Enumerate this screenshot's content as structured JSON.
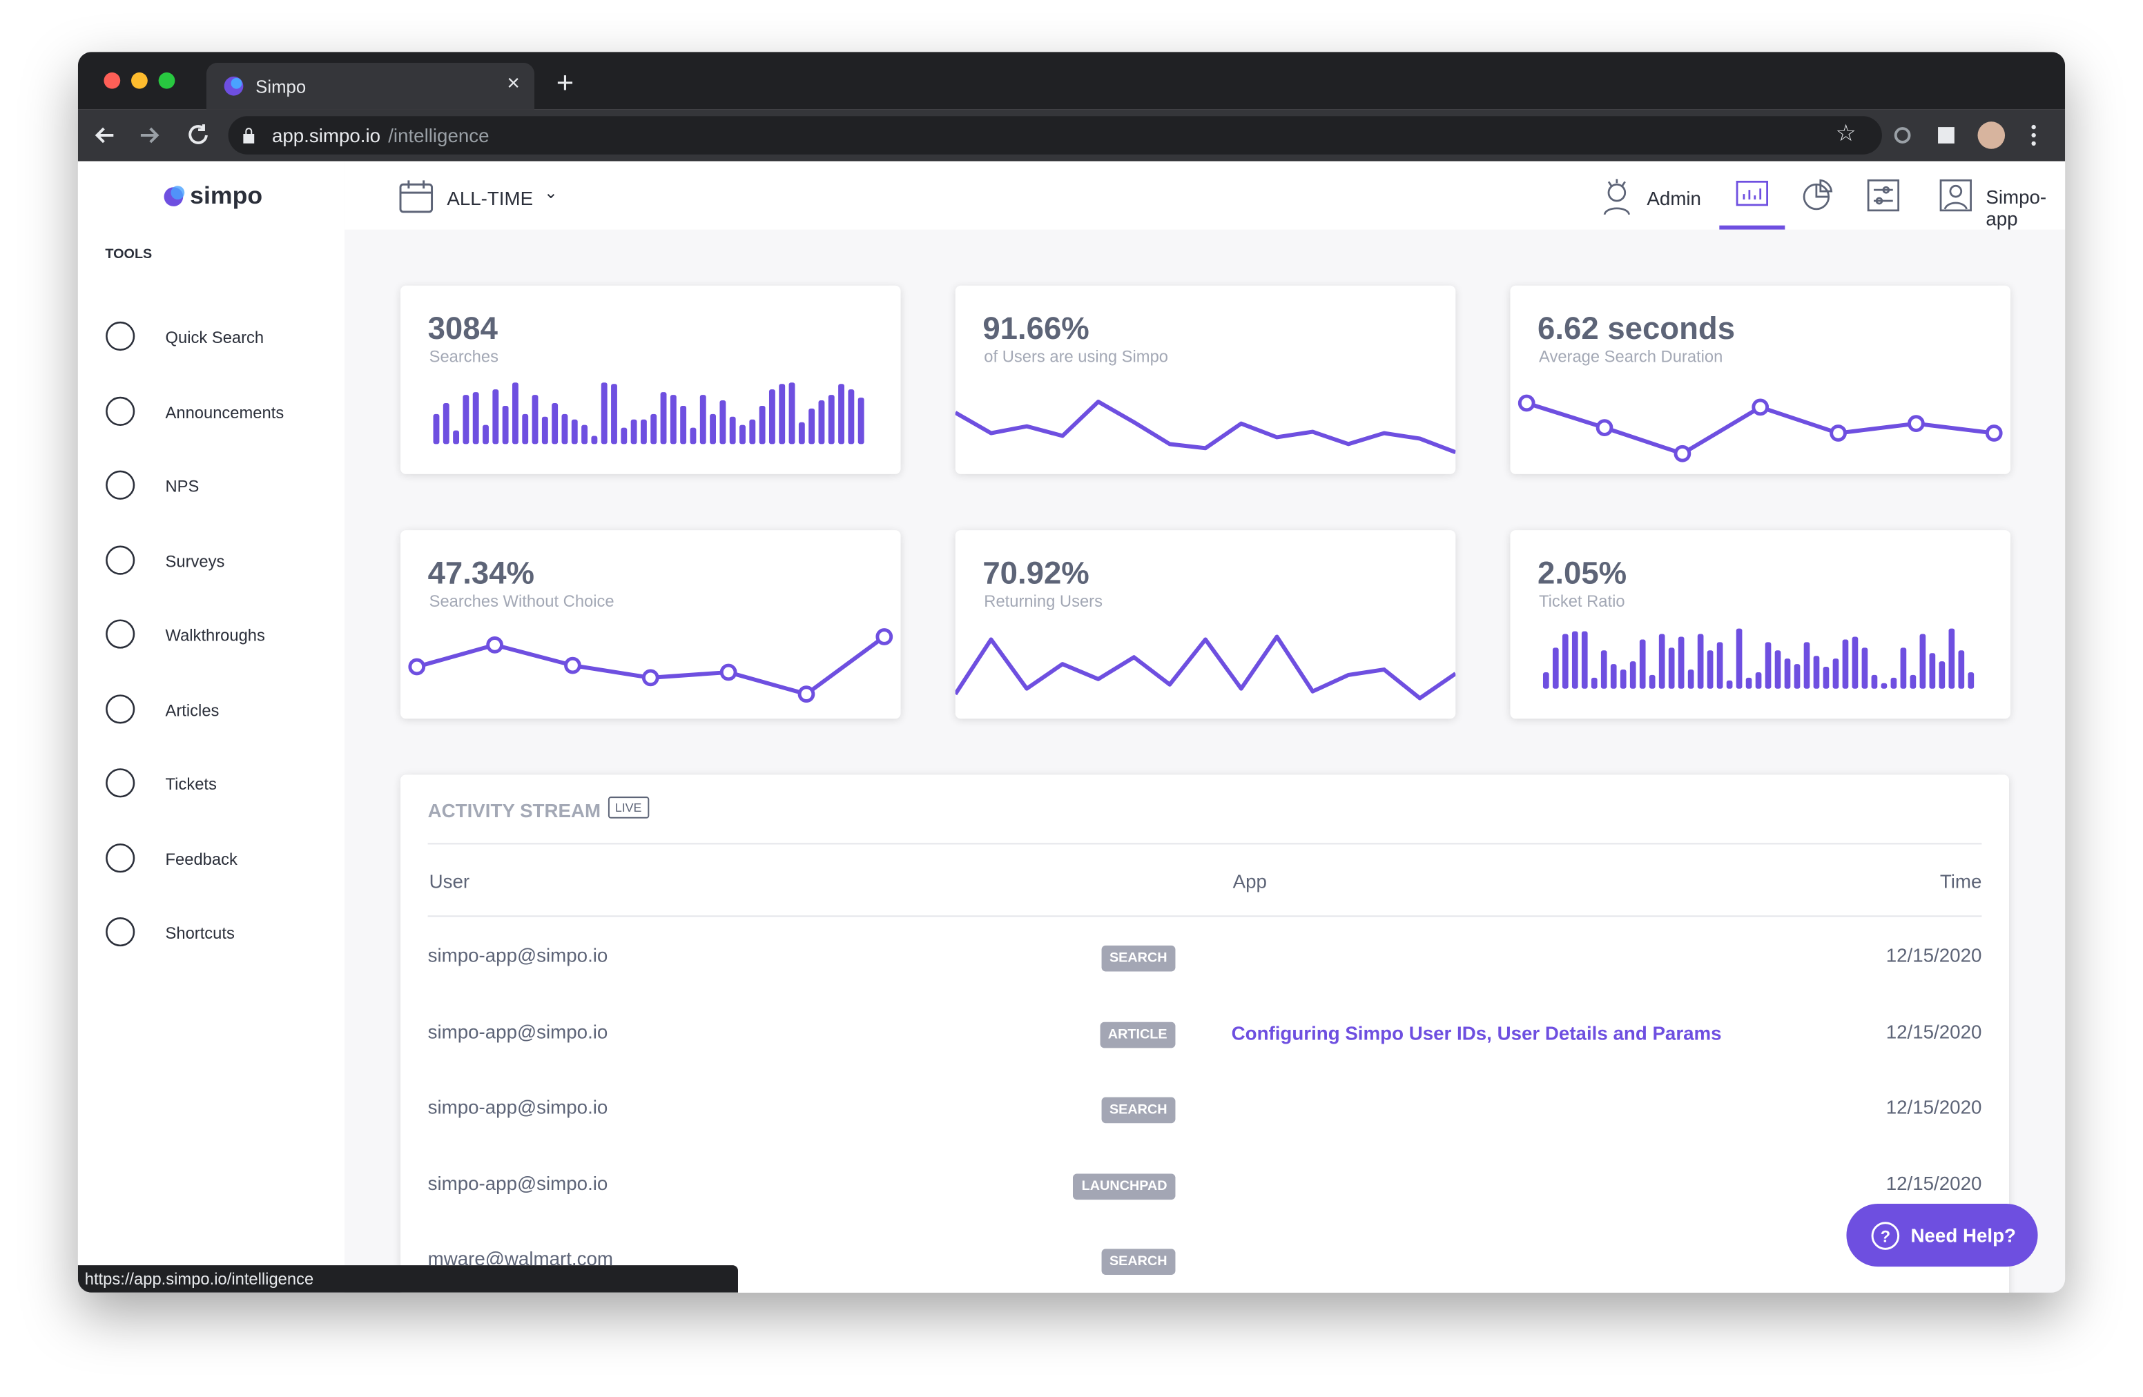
{
  "browser": {
    "tab_title": "Simpo",
    "url_host": "app.simpo.io",
    "url_path": "/intelligence",
    "status_url": "https://app.simpo.io/intelligence"
  },
  "sidebar": {
    "logo": "simpo",
    "section": "TOOLS",
    "items": [
      "Quick Search",
      "Announcements",
      "NPS",
      "Surveys",
      "Walkthroughs",
      "Articles",
      "Tickets",
      "Feedback",
      "Shortcuts"
    ]
  },
  "header": {
    "range": "ALL-TIME",
    "admin": "Admin",
    "account": "Simpo-app"
  },
  "metrics": [
    {
      "value": "3084",
      "label": "Searches",
      "chart": {
        "type": "bar",
        "ylim": [
          0,
          50
        ],
        "values": [
          22,
          30,
          10,
          36,
          38,
          14,
          40,
          28,
          45,
          22,
          36,
          20,
          30,
          22,
          18,
          14,
          6,
          45,
          44,
          12,
          18,
          18,
          22,
          38,
          36,
          28,
          12,
          36,
          22,
          32,
          20,
          14,
          18,
          28,
          40,
          44,
          45,
          16,
          26,
          32,
          36,
          44,
          40,
          34
        ]
      }
    },
    {
      "value": "91.66%",
      "label": "of Users are using Simpo",
      "chart": {
        "type": "line",
        "ylim": [
          0,
          50
        ],
        "values": [
          35,
          20,
          25,
          18,
          43,
          28,
          12,
          9,
          27,
          17,
          21,
          12,
          20,
          16,
          6
        ]
      }
    },
    {
      "value": "6.62 seconds",
      "label": "Average Search Duration",
      "chart": {
        "type": "line",
        "markers": true,
        "ylim": [
          0,
          50
        ],
        "values": [
          42,
          24,
          5,
          39,
          20,
          27,
          20
        ]
      }
    },
    {
      "value": "47.34%",
      "label": "Searches Without Choice",
      "chart": {
        "type": "line",
        "markers": true,
        "ylim": [
          0,
          50
        ],
        "values": [
          28,
          44,
          29,
          20,
          24,
          8,
          50
        ]
      }
    },
    {
      "value": "70.92%",
      "label": "Returning Users",
      "chart": {
        "type": "line",
        "ylim": [
          0,
          50
        ],
        "values": [
          8,
          48,
          12,
          30,
          19,
          35,
          15,
          48,
          12,
          50,
          10,
          22,
          26,
          5,
          23
        ]
      }
    },
    {
      "value": "2.05%",
      "label": "Ticket Ratio",
      "chart": {
        "type": "bar",
        "ylim": [
          0,
          50
        ],
        "values": [
          12,
          30,
          40,
          42,
          42,
          8,
          28,
          18,
          14,
          20,
          36,
          10,
          40,
          30,
          38,
          14,
          40,
          28,
          34,
          6,
          44,
          8,
          12,
          34,
          28,
          22,
          18,
          34,
          24,
          16,
          22,
          36,
          38,
          30,
          10,
          4,
          8,
          30,
          10,
          40,
          26,
          20,
          44,
          28,
          12
        ]
      }
    }
  ],
  "activity": {
    "title": "ACTIVITY STREAM",
    "badge": "LIVE",
    "columns": [
      "User",
      "App",
      "Time"
    ],
    "rows": [
      {
        "user": "simpo-app@simpo.io",
        "tag": "SEARCH",
        "time": "12/15/2020"
      },
      {
        "user": "simpo-app@simpo.io",
        "tag": "ARTICLE",
        "app": "Configuring Simpo User IDs, User Details and Params",
        "time": "12/15/2020"
      },
      {
        "user": "simpo-app@simpo.io",
        "tag": "SEARCH",
        "time": "12/15/2020"
      },
      {
        "user": "simpo-app@simpo.io",
        "tag": "LAUNCHPAD",
        "time": "12/15/2020"
      },
      {
        "user": "mware@walmart.com",
        "tag": "SEARCH"
      }
    ]
  },
  "help": "Need Help?"
}
